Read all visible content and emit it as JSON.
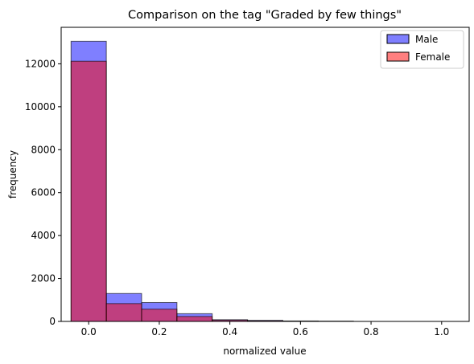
{
  "chart_data": {
    "type": "bar",
    "title": "Comparison on the tag \"Graded by few things\"",
    "xlabel": "normalized value",
    "ylabel": "frequency",
    "xlim": [
      -0.078,
      1.078
    ],
    "ylim": [
      0,
      13700
    ],
    "bin_edges": [
      -0.05,
      0.05,
      0.15,
      0.25,
      0.35,
      0.45,
      0.55,
      0.65,
      0.75,
      0.85,
      0.95,
      1.05
    ],
    "x_ticks": [
      0.0,
      0.2,
      0.4,
      0.6,
      0.8,
      1.0
    ],
    "x_tick_labels": [
      "0.0",
      "0.2",
      "0.4",
      "0.6",
      "0.8",
      "1.0"
    ],
    "y_ticks": [
      0,
      2000,
      4000,
      6000,
      8000,
      10000,
      12000
    ],
    "y_tick_labels": [
      "0",
      "2000",
      "4000",
      "6000",
      "8000",
      "10000",
      "12000"
    ],
    "series": [
      {
        "name": "Male",
        "color": "#0000ff",
        "values": [
          13050,
          1300,
          880,
          360,
          80,
          50,
          20,
          10,
          0,
          0,
          0
        ]
      },
      {
        "name": "Female",
        "color": "#ff0000",
        "values": [
          12120,
          830,
          570,
          230,
          60,
          30,
          15,
          8,
          0,
          0,
          0
        ]
      }
    ],
    "bar_alpha": 0.5,
    "bar_edge_color": "#000000",
    "legend_position": "top-right",
    "grid": false
  }
}
